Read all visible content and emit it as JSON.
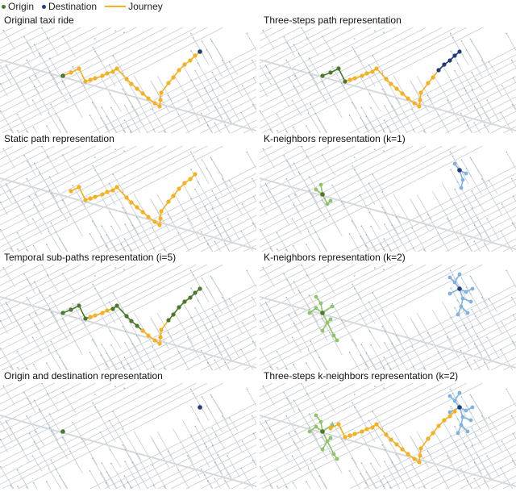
{
  "legend": {
    "origin": "Origin",
    "destination": "Destination",
    "journey": "Journey"
  },
  "colors": {
    "origin": "#4a7a2a",
    "destination": "#1f3f7a",
    "journey": "#f5b120",
    "origin_neighbors": "#8fc46a",
    "destination_neighbors": "#7fb2e0",
    "streets": "#c8cdd2",
    "nodes": "#8ab4d8"
  },
  "panels": [
    {
      "title": "Original taxi ride",
      "mode": "original"
    },
    {
      "title": "Three-steps path representation",
      "mode": "threesteps"
    },
    {
      "title": "Static path representation",
      "mode": "static"
    },
    {
      "title": "K-neighbors representation (k=1)",
      "mode": "k1"
    },
    {
      "title": "Temporal sub-paths representation (i=5)",
      "mode": "temporal"
    },
    {
      "title": "K-neighbors representation (k=2)",
      "mode": "k2"
    },
    {
      "title": "Origin and destination representation",
      "mode": "od"
    },
    {
      "title": "Three-steps k-neighbors representation (k=2)",
      "mode": "threestepsk"
    }
  ]
}
